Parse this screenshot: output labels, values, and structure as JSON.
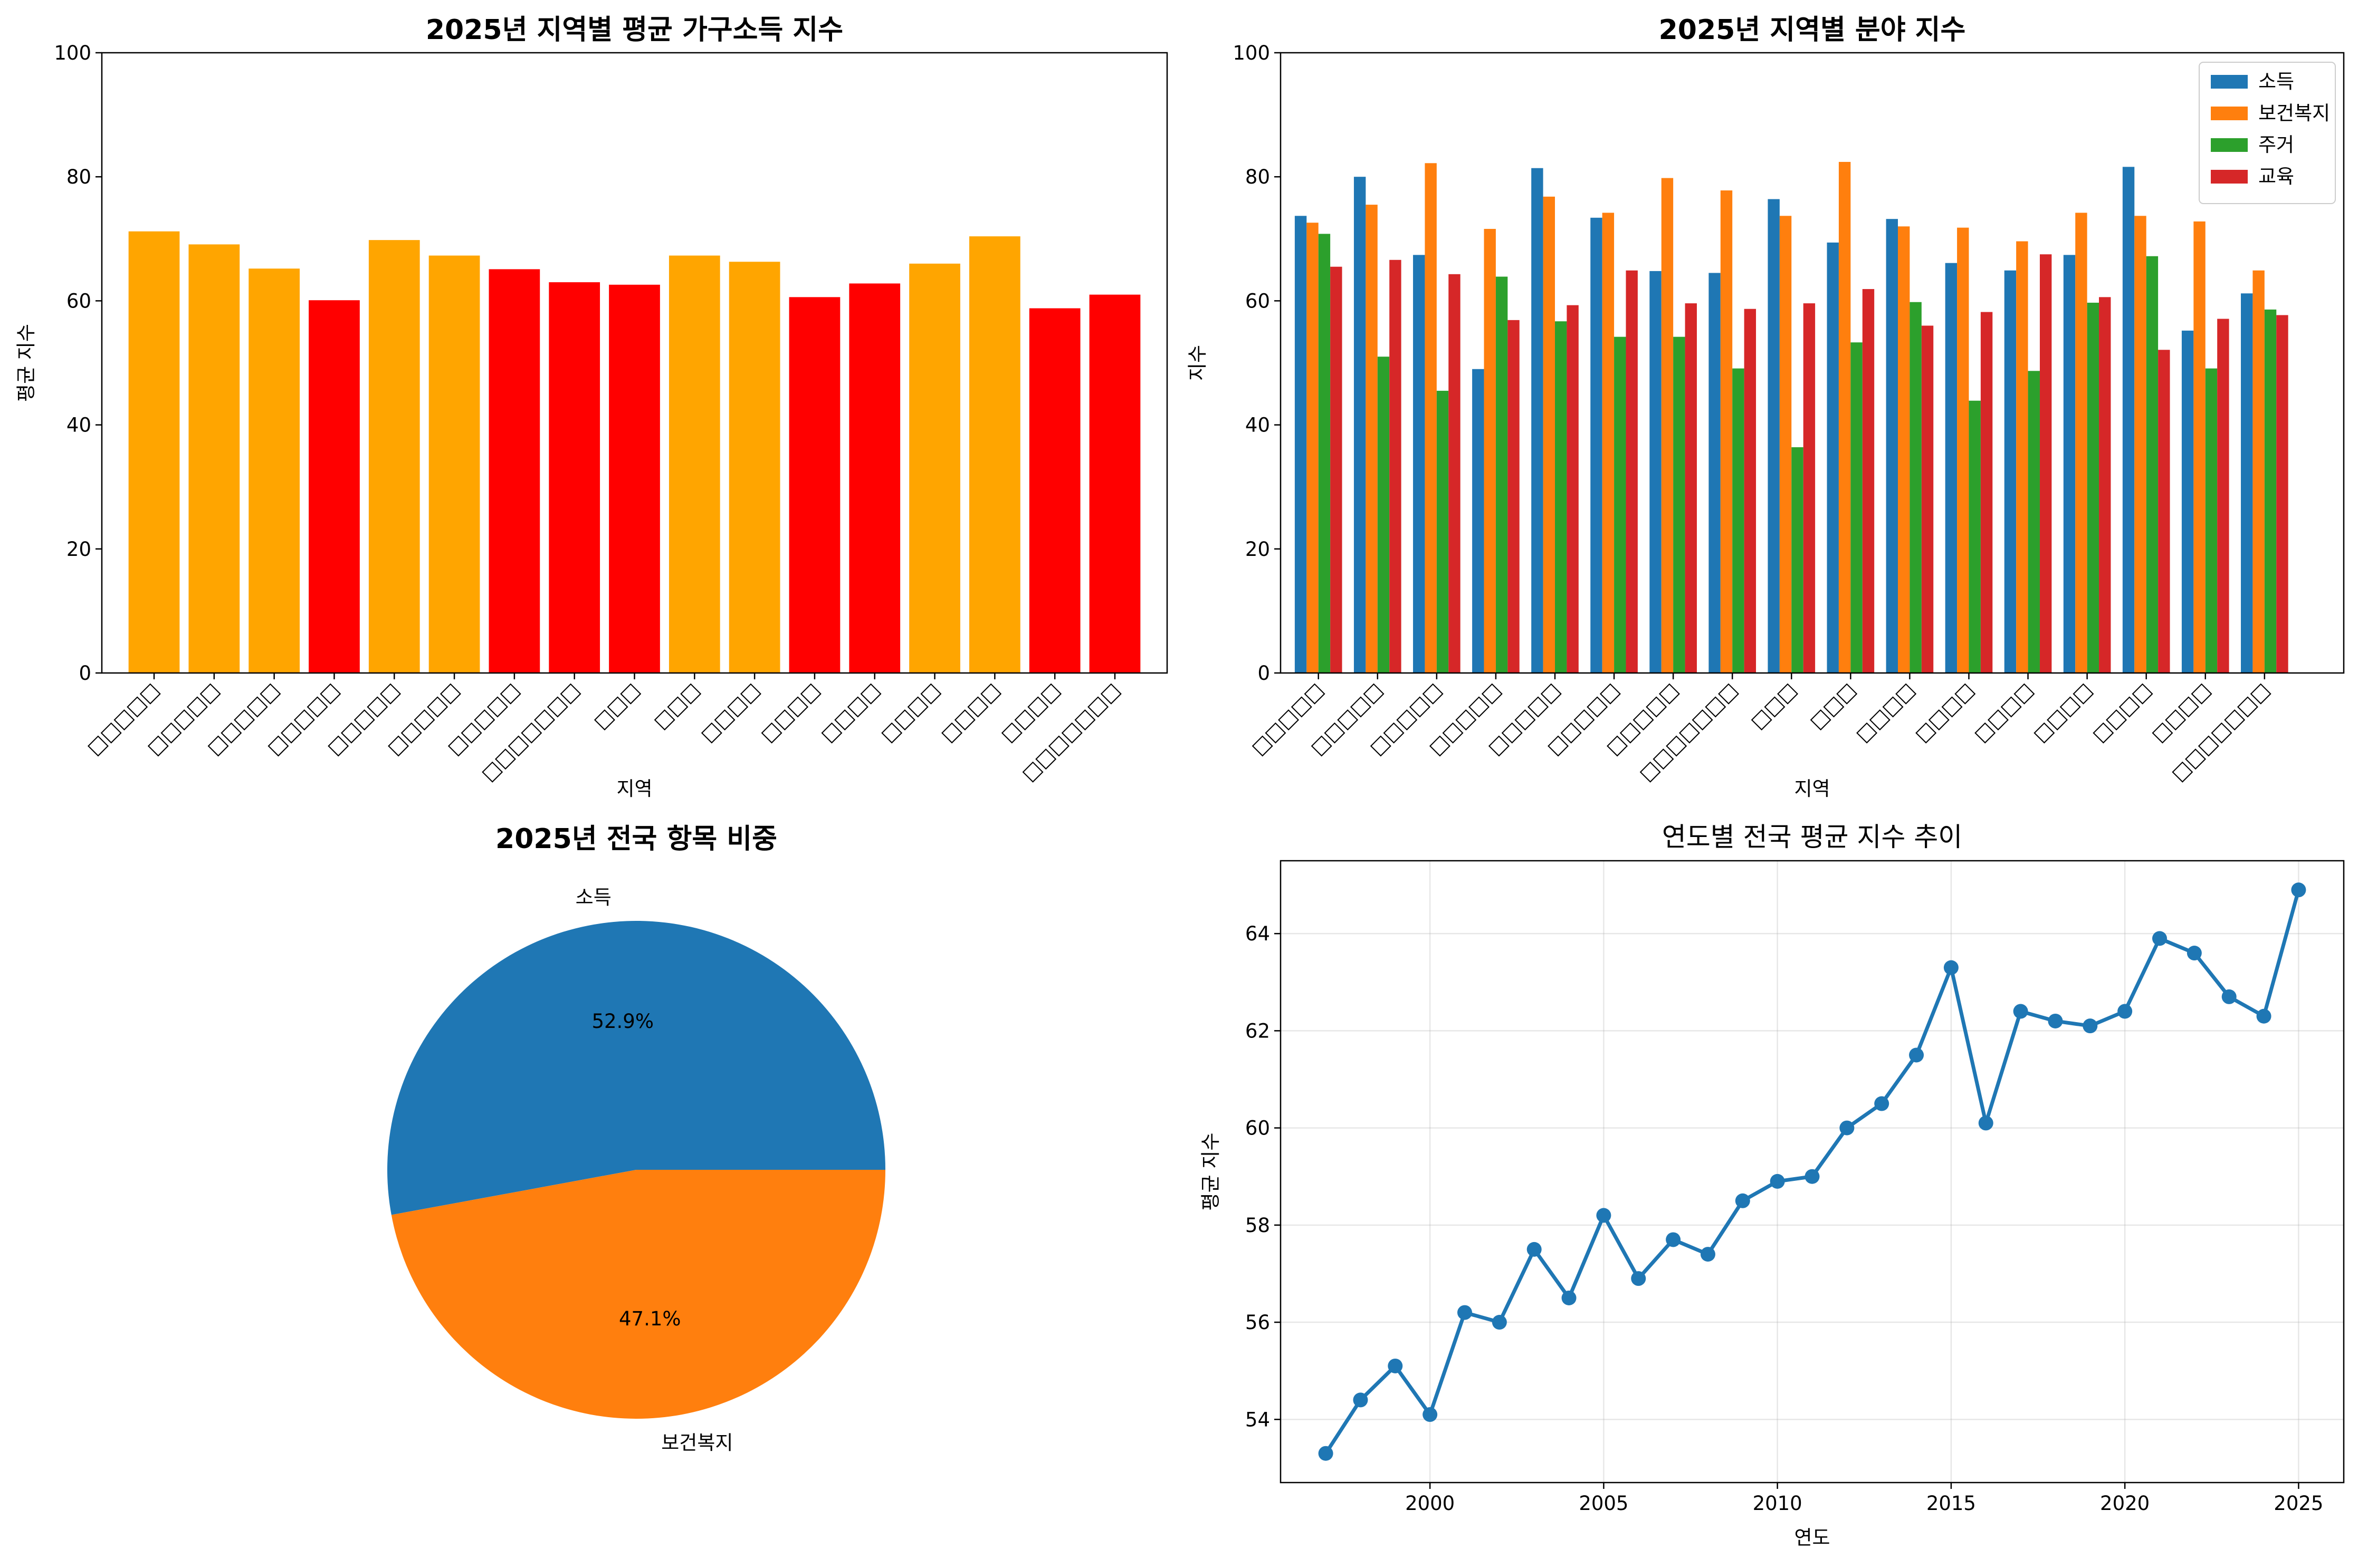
{
  "charts": [
    {
      "type": "bar",
      "title": "2025년 지역별 평균 가구소득 지수",
      "xlabel": "지역",
      "ylabel": "평균 지수",
      "ylim": [
        0,
        100
      ],
      "yticks": [
        0,
        20,
        40,
        60,
        80,
        100
      ],
      "categories": [
        "□□□□□",
        "□□□□□",
        "□□□□□",
        "□□□□□",
        "□□□□□",
        "□□□□□",
        "□□□□□",
        "□□□□□□□",
        "□□□",
        "□□□",
        "□□□□",
        "□□□□",
        "□□□□",
        "□□□□",
        "□□□□",
        "□□□□",
        "□□□□□□□"
      ],
      "values": [
        71.2,
        69.1,
        65.2,
        60.1,
        69.8,
        67.3,
        65.1,
        63.0,
        62.6,
        67.3,
        66.3,
        60.6,
        62.8,
        66.0,
        70.4,
        58.8,
        61.0
      ],
      "colors": [
        "#FFA500",
        "#FFA500",
        "#FFA500",
        "#FF0000",
        "#FFA500",
        "#FFA500",
        "#FF0000",
        "#FF0000",
        "#FF0000",
        "#FFA500",
        "#FFA500",
        "#FF0000",
        "#FF0000",
        "#FFA500",
        "#FFA500",
        "#FF0000",
        "#FF0000"
      ]
    },
    {
      "type": "bar",
      "title": "2025년 지역별 분야 지수",
      "xlabel": "지역",
      "ylabel": "지수",
      "ylim": [
        0,
        100
      ],
      "yticks": [
        0,
        20,
        40,
        60,
        80,
        100
      ],
      "legend_position": "top-right",
      "categories": [
        "□□□□□",
        "□□□□□",
        "□□□□□",
        "□□□□□",
        "□□□□□",
        "□□□□□",
        "□□□□□",
        "□□□□□□□",
        "□□□",
        "□□□",
        "□□□□",
        "□□□□",
        "□□□□",
        "□□□□",
        "□□□□",
        "□□□□",
        "□□□□□□□"
      ],
      "series": [
        {
          "name": "소득",
          "color": "#1f77b4",
          "values": [
            73.7,
            80.0,
            67.4,
            49.0,
            81.4,
            73.4,
            64.8,
            64.5,
            76.4,
            69.4,
            73.2,
            66.1,
            64.9,
            67.4,
            81.6,
            55.2,
            61.2
          ]
        },
        {
          "name": "보건복지",
          "color": "#ff7f0e",
          "values": [
            72.6,
            75.5,
            82.2,
            71.6,
            76.8,
            74.2,
            79.8,
            77.8,
            73.7,
            82.4,
            72.0,
            71.8,
            69.6,
            74.2,
            73.7,
            72.8,
            64.9
          ]
        },
        {
          "name": "주거",
          "color": "#2ca02c",
          "values": [
            70.8,
            51.0,
            45.5,
            63.9,
            56.7,
            54.2,
            54.2,
            49.1,
            36.4,
            53.3,
            59.8,
            43.9,
            48.7,
            59.7,
            67.2,
            49.1,
            58.6
          ]
        },
        {
          "name": "교육",
          "color": "#d62728",
          "values": [
            65.5,
            66.6,
            64.3,
            56.9,
            59.3,
            64.9,
            59.6,
            58.7,
            59.6,
            61.9,
            56.0,
            58.2,
            67.5,
            60.6,
            52.1,
            57.1,
            57.7
          ]
        }
      ]
    },
    {
      "type": "pie",
      "title": "2025년 전국 항목 비중",
      "slices": [
        {
          "label": "소득",
          "value": 52.9,
          "pct_label": "52.9%",
          "color": "#1f77b4"
        },
        {
          "label": "보건복지",
          "value": 47.1,
          "pct_label": "47.1%",
          "color": "#ff7f0e"
        }
      ]
    },
    {
      "type": "line",
      "title": "연도별 전국 평균 지수 추이",
      "xlabel": "연도",
      "ylabel": "평균 지수",
      "xlim": [
        1995.7,
        2026.3
      ],
      "ylim": [
        52.7,
        65.5
      ],
      "xticks": [
        2000,
        2005,
        2010,
        2015,
        2020,
        2025
      ],
      "yticks": [
        54,
        56,
        58,
        60,
        62,
        64
      ],
      "grid": true,
      "color": "#1f77b4",
      "x": [
        1997,
        1998,
        1999,
        2000,
        2001,
        2002,
        2003,
        2004,
        2005,
        2006,
        2007,
        2008,
        2009,
        2010,
        2011,
        2012,
        2013,
        2014,
        2015,
        2016,
        2017,
        2018,
        2019,
        2020,
        2021,
        2022,
        2023,
        2024,
        2025
      ],
      "y": [
        53.3,
        54.4,
        55.1,
        54.1,
        56.2,
        56.0,
        57.5,
        56.5,
        58.2,
        56.9,
        57.7,
        57.4,
        58.5,
        58.9,
        59.0,
        60.0,
        60.5,
        61.5,
        63.3,
        60.1,
        62.4,
        62.2,
        62.1,
        62.4,
        63.9,
        63.6,
        62.7,
        62.3,
        64.9
      ]
    }
  ]
}
